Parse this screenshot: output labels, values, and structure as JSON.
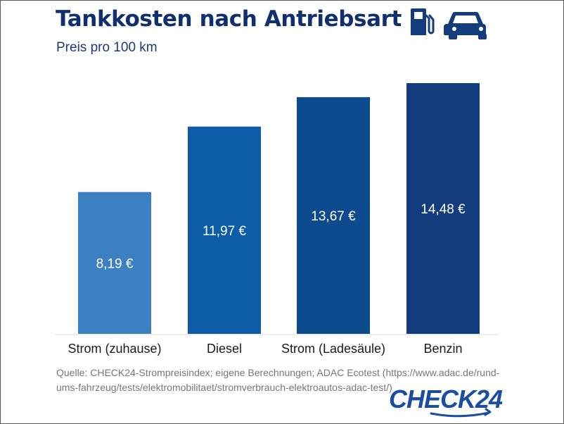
{
  "header": {
    "title": "Tankkosten nach Antriebsart",
    "subtitle": "Preis pro 100 km"
  },
  "icons": [
    "fuel-pump-icon",
    "car-icon"
  ],
  "chart_data": {
    "type": "bar",
    "title": "Tankkosten nach Antriebsart",
    "subtitle": "Preis pro 100 km",
    "xlabel": "",
    "ylabel": "",
    "unit": "€",
    "grid": false,
    "legend": "none",
    "ylim": [
      0,
      14.48
    ],
    "categories": [
      "Strom (zuhause)",
      "Diesel",
      "Strom (Ladesäule)",
      "Benzin"
    ],
    "values": [
      8.19,
      11.97,
      13.67,
      14.48
    ],
    "data_labels": [
      "8,19 €",
      "11,97 €",
      "13,67 €",
      "14,48 €"
    ],
    "colors": [
      "#3b80c0",
      "#0d5ca8",
      "#0e4b8e",
      "#123c7c"
    ]
  },
  "footer": {
    "source": "Quelle: CHECK24-Strompreisindex; eigene Berechnungen; ADAC Ecotest (https://www.adac.de/rund-ums-fahrzeug/tests/elektromobilitaet/stromverbrauch-elektroautos-adac-test/)",
    "brand": "CHECK24"
  }
}
